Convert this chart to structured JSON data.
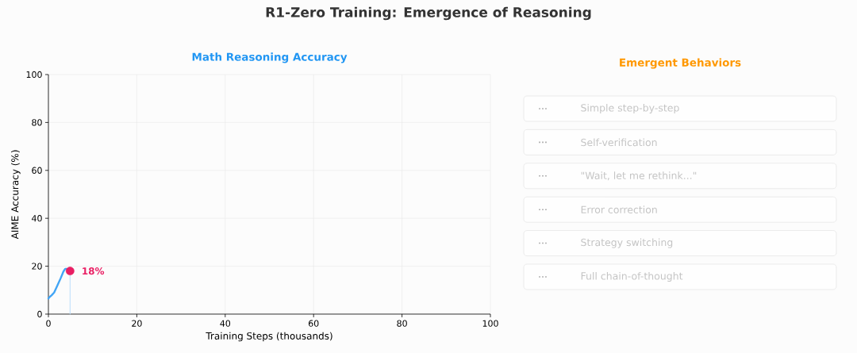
{
  "chart_data": [
    {
      "type": "line",
      "title": "R1-Zero Training: Emergence of Reasoning",
      "subtitle": "Math Reasoning Accuracy",
      "xlabel": "Training Steps (thousands)",
      "ylabel": "AIME Accuracy (%)",
      "xlim": [
        0,
        100
      ],
      "ylim": [
        0,
        100
      ],
      "xticks": [
        0,
        20,
        40,
        60,
        80,
        100
      ],
      "yticks": [
        0,
        20,
        40,
        60,
        80,
        100
      ],
      "grid": true,
      "series": [
        {
          "color": "#42a5f5",
          "x": [
            0,
            0.3,
            0.7,
            1.3,
            2.0,
            2.8,
            3.4,
            3.8,
            4.2
          ],
          "values": [
            6.5,
            7.2,
            7.8,
            9.0,
            11.8,
            15.1,
            17.8,
            18.9,
            18.9
          ]
        },
        {
          "color": "#bbdefb",
          "x": [
            4.9,
            4.9
          ],
          "values": [
            0,
            18
          ]
        },
        {
          "type": "scatter",
          "marker": "circle",
          "color": "#e91e63",
          "x": [
            4.9
          ],
          "values": [
            18
          ],
          "value_labels": [
            "18%"
          ]
        }
      ]
    },
    {
      "type": "other",
      "title": "Emergent Behaviors",
      "categories": [
        "Simple step-by-step",
        "Self-verification",
        "\"Wait, let me rethink...\"",
        "Error correction",
        "Strategy switching",
        "Full chain-of-thought"
      ],
      "annotations": [
        "...",
        "...",
        "...",
        "...",
        "...",
        "..."
      ]
    }
  ]
}
